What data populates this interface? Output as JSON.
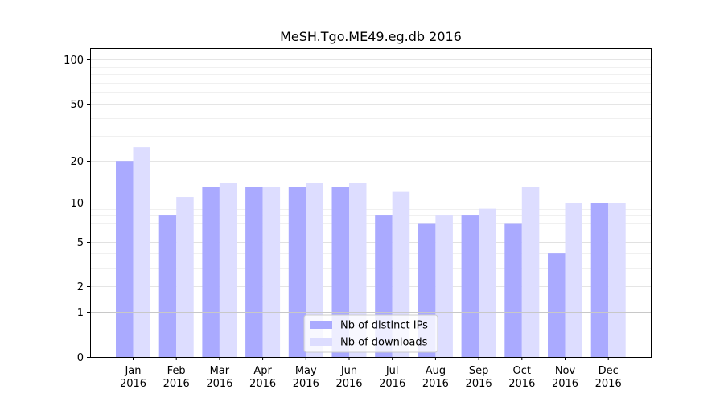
{
  "chart_data": {
    "type": "bar",
    "title": "MeSH.Tgo.ME49.eg.db 2016",
    "xlabel": "",
    "ylabel": "",
    "yscale": "log(1+y)",
    "ylim": [
      0,
      120
    ],
    "yticks": [
      0,
      1,
      2,
      5,
      10,
      20,
      50,
      100
    ],
    "categories": [
      [
        "Jan",
        "2016"
      ],
      [
        "Feb",
        "2016"
      ],
      [
        "Mar",
        "2016"
      ],
      [
        "Apr",
        "2016"
      ],
      [
        "May",
        "2016"
      ],
      [
        "Jun",
        "2016"
      ],
      [
        "Jul",
        "2016"
      ],
      [
        "Aug",
        "2016"
      ],
      [
        "Sep",
        "2016"
      ],
      [
        "Oct",
        "2016"
      ],
      [
        "Nov",
        "2016"
      ],
      [
        "Dec",
        "2016"
      ]
    ],
    "series": [
      {
        "name": "Nb of distinct IPs",
        "color": "#aaaaff",
        "values": [
          20,
          8,
          13,
          13,
          13,
          13,
          8,
          7,
          8,
          7,
          4,
          10
        ]
      },
      {
        "name": "Nb of downloads",
        "color": "#ddddff",
        "values": [
          25,
          11,
          14,
          13,
          14,
          14,
          12,
          8,
          9,
          13,
          10,
          10
        ]
      }
    ],
    "legend_position": "bottom-center",
    "grid": true
  }
}
